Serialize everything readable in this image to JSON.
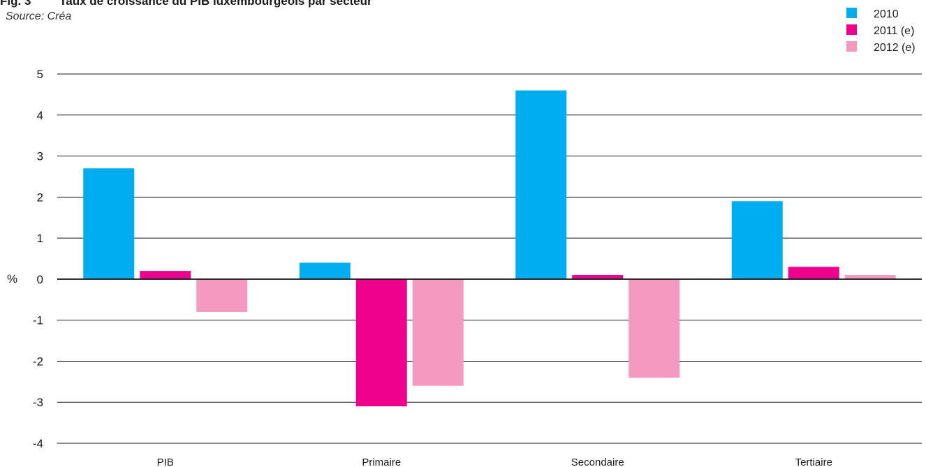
{
  "header": {
    "figure_number": "Fig. 3",
    "title": "Taux de croissance du PIB luxembourgeois par secteur",
    "source": "Source: Créa"
  },
  "chart_data": {
    "type": "bar",
    "title": "Taux de croissance du PIB luxembourgeois par secteur",
    "xlabel": "",
    "ylabel": "%",
    "categories": [
      "PIB",
      "Primaire",
      "Secondaire",
      "Tertiaire"
    ],
    "series": [
      {
        "name": "2010",
        "color": "#00aeef",
        "values": [
          2.7,
          0.4,
          4.6,
          1.9
        ]
      },
      {
        "name": "2011 (e)",
        "color": "#ec008c",
        "values": [
          0.2,
          -3.1,
          0.1,
          0.3
        ]
      },
      {
        "name": "2012 (e)",
        "color": "#f49ac1",
        "values": [
          -0.8,
          -2.6,
          -2.4,
          0.1
        ]
      }
    ],
    "ylim": [
      -4,
      5
    ],
    "yticks": [
      5,
      4,
      3,
      2,
      1,
      0,
      -1,
      -2,
      -3,
      -4
    ],
    "grid": true,
    "legend_position": "top-right"
  }
}
